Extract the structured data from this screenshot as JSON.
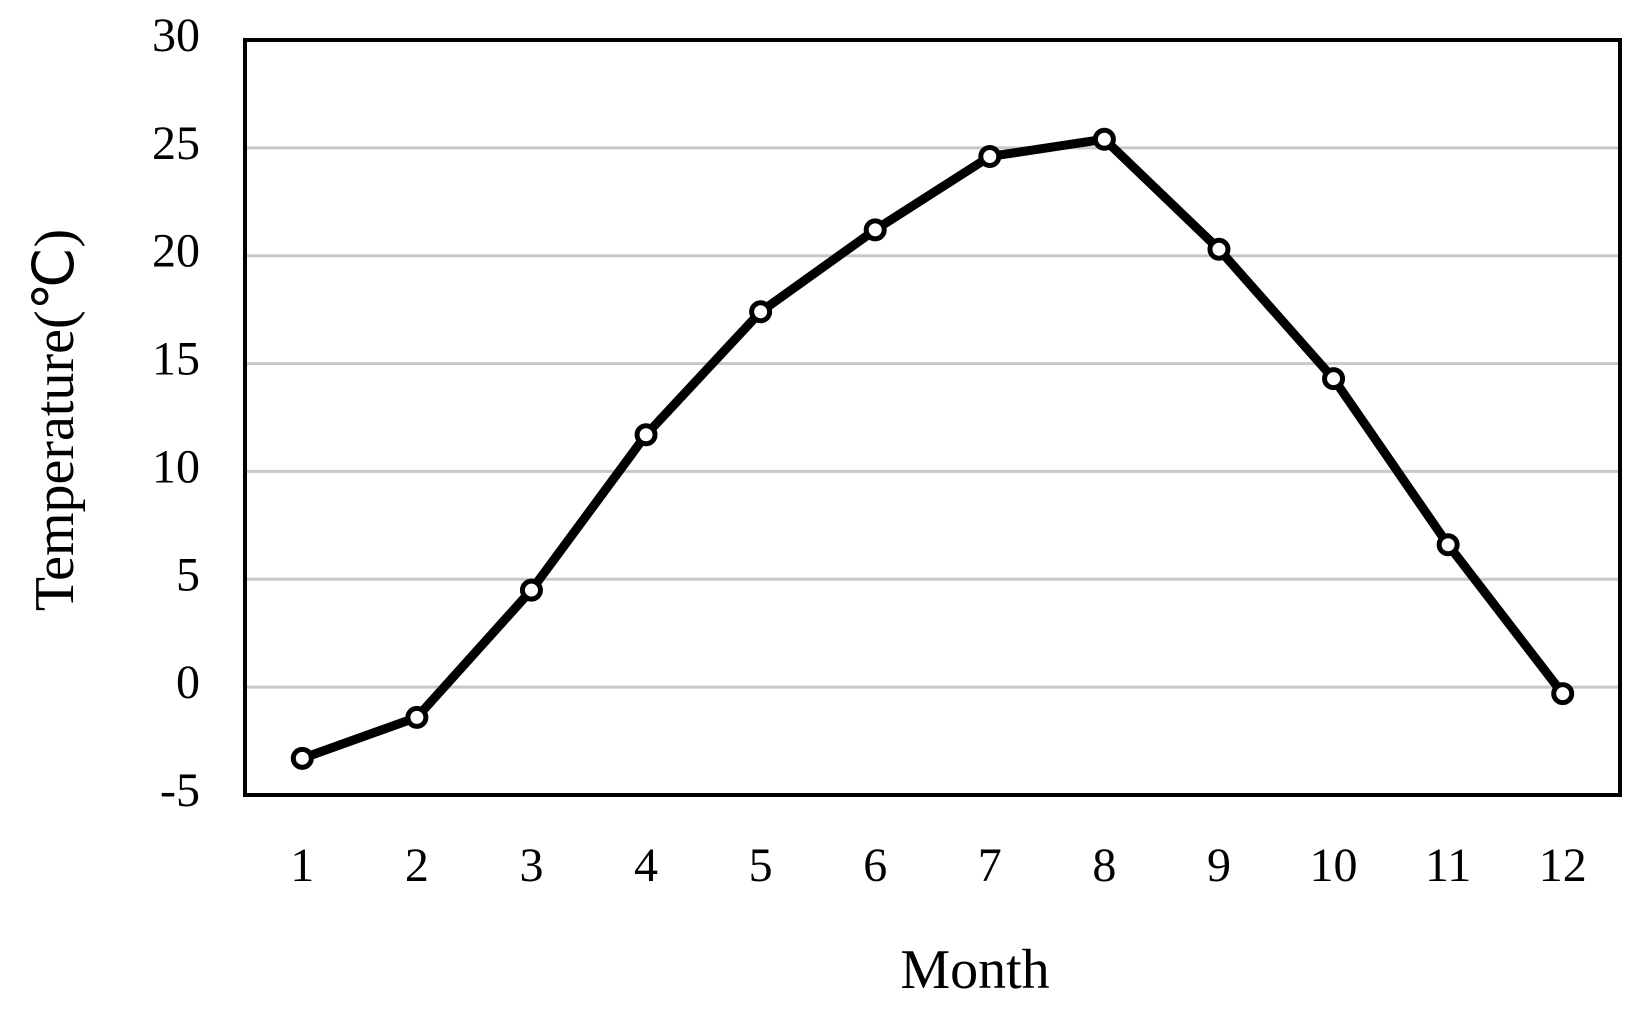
{
  "chart_data": {
    "type": "line",
    "x_label": "Month",
    "y_label": "Temperature(℃)",
    "categories": [
      "1",
      "2",
      "3",
      "4",
      "5",
      "6",
      "7",
      "8",
      "9",
      "10",
      "11",
      "12"
    ],
    "series": [
      {
        "name": "Temperature",
        "color": "#000000",
        "values": [
          -3.3,
          -1.4,
          4.5,
          11.7,
          17.4,
          21.2,
          24.6,
          25.4,
          20.3,
          14.3,
          6.6,
          -0.3
        ]
      }
    ],
    "ylim": [
      -5,
      30
    ],
    "yticks": [
      -5,
      0,
      5,
      10,
      15,
      20,
      25,
      30
    ],
    "grid": true
  }
}
